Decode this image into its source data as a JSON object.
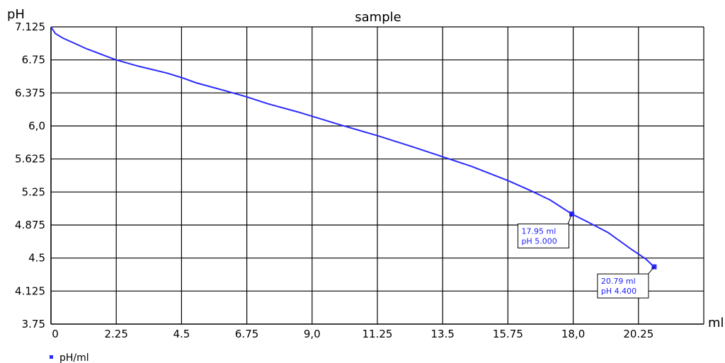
{
  "chart_data": {
    "type": "line",
    "title": "sample",
    "xlabel": "ml",
    "ylabel": "pH",
    "xlim": [
      0,
      22.5
    ],
    "ylim": [
      3.75,
      7.125
    ],
    "x_ticks": [
      "0",
      "2.25",
      "4.5",
      "6.75",
      "9,0",
      "11.25",
      "13.5",
      "15.75",
      "18,0",
      "20.25"
    ],
    "x_tick_values": [
      0,
      2.25,
      4.5,
      6.75,
      9,
      11.25,
      13.5,
      15.75,
      18,
      20.25
    ],
    "y_ticks": [
      "3.75",
      "4.125",
      "4.5",
      "4.875",
      "5.25",
      "5.625",
      "6,0",
      "6.375",
      "6.75",
      "7.125"
    ],
    "y_tick_values": [
      3.75,
      4.125,
      4.5,
      4.875,
      5.25,
      5.625,
      6.0,
      6.375,
      6.75,
      7.125
    ],
    "grid": true,
    "legend": "bottom-left",
    "series": [
      {
        "name": "pH/ml",
        "color": "#2a2aff",
        "x": [
          0,
          0.15,
          0.4,
          0.8,
          1.2,
          1.6,
          2.0,
          2.25,
          3.0,
          4.0,
          4.5,
          5.0,
          6.0,
          6.75,
          7.5,
          8.5,
          9.0,
          10.0,
          11.25,
          12.5,
          13.5,
          14.5,
          15.2,
          15.75,
          16.5,
          17.2,
          17.95,
          18.5,
          19.2,
          20.0,
          20.5,
          20.79
        ],
        "y": [
          7.125,
          7.05,
          7.0,
          6.94,
          6.88,
          6.83,
          6.78,
          6.75,
          6.68,
          6.6,
          6.55,
          6.49,
          6.4,
          6.33,
          6.25,
          6.16,
          6.11,
          6.01,
          5.89,
          5.76,
          5.65,
          5.54,
          5.45,
          5.38,
          5.27,
          5.16,
          5.0,
          4.91,
          4.79,
          4.6,
          4.49,
          4.4
        ]
      }
    ],
    "annotations": [
      {
        "x": 17.95,
        "y": 5.0,
        "line1": "17.95 ml",
        "line2": "pH 5.000"
      },
      {
        "x": 20.79,
        "y": 4.4,
        "line1": "20.79 ml",
        "line2": "pH 4.400"
      }
    ]
  }
}
